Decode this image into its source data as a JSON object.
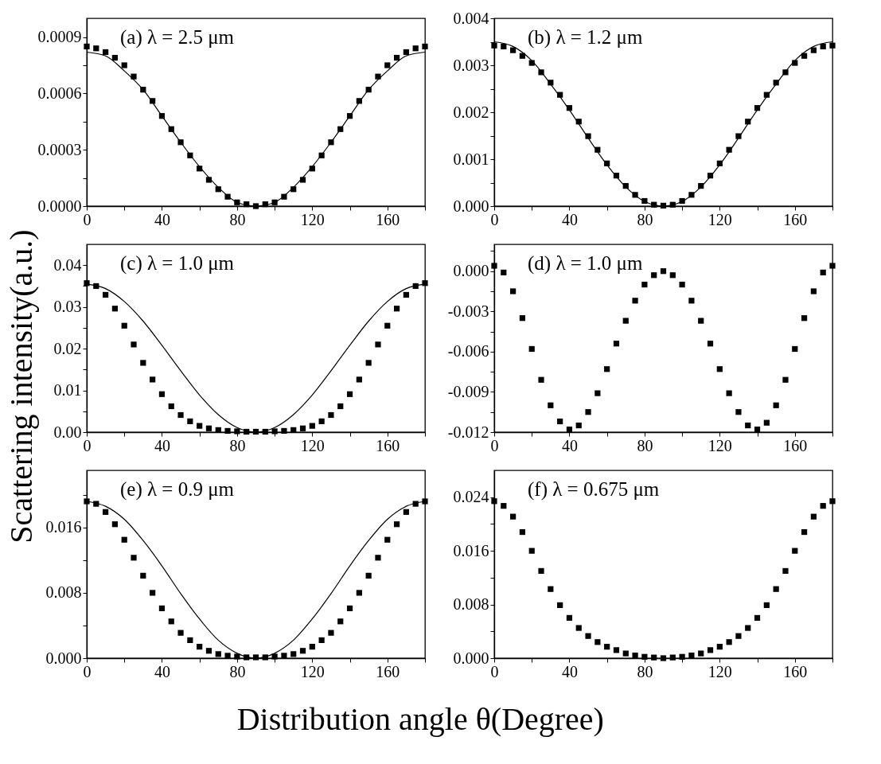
{
  "chart_data": [
    {
      "type": "scatter",
      "title": "(a) λ = 2.5 μm",
      "xlim": [
        0,
        180
      ],
      "xticks": [
        0,
        {
          "value": 20,
          "label": null
        },
        40,
        {
          "value": 60,
          "label": null
        },
        80,
        {
          "value": 100,
          "label": null
        },
        120,
        {
          "value": 140,
          "label": null
        },
        160,
        {
          "value": 180,
          "label": null
        }
      ],
      "ylim": [
        0,
        0.001
      ],
      "yticks": [
        {
          "value": 0,
          "label": "0.0000"
        },
        {
          "value": 0.00015,
          "label": null
        },
        {
          "value": 0.0003,
          "label": "0.0003"
        },
        {
          "value": 0.00045,
          "label": null
        },
        {
          "value": 0.0006,
          "label": "0.0006"
        },
        {
          "value": 0.00075,
          "label": null
        },
        {
          "value": 0.0009,
          "label": "0.0009"
        }
      ],
      "series": [
        {
          "marker": "square",
          "color": "#000000",
          "x": [
            0,
            5,
            10,
            15,
            20,
            25,
            30,
            35,
            40,
            45,
            50,
            55,
            60,
            65,
            70,
            75,
            80,
            85,
            90,
            95,
            100,
            105,
            110,
            115,
            120,
            125,
            130,
            135,
            140,
            145,
            150,
            155,
            160,
            165,
            170,
            175,
            180
          ],
          "values": [
            0.00085,
            0.00084,
            0.00082,
            0.00079,
            0.00075,
            0.00069,
            0.00062,
            0.00056,
            0.00048,
            0.00041,
            0.00034,
            0.00027,
            0.0002,
            0.00014,
            9e-05,
            5e-05,
            2e-05,
            1e-05,
            0,
            1e-05,
            2e-05,
            5e-05,
            9e-05,
            0.00014,
            0.0002,
            0.00027,
            0.00034,
            0.00041,
            0.00048,
            0.00056,
            0.00062,
            0.00069,
            0.00075,
            0.00079,
            0.00082,
            0.00084,
            0.00085
          ]
        },
        {
          "type": "line",
          "color": "#000000",
          "x": [
            0,
            10,
            20,
            30,
            40,
            50,
            60,
            70,
            80,
            90,
            100,
            110,
            120,
            130,
            140,
            150,
            160,
            170,
            180
          ],
          "values": [
            0.00082,
            0.0008,
            0.00072,
            0.00062,
            0.00048,
            0.00034,
            0.00021,
            0.0001,
            2e-05,
            0,
            2e-05,
            0.0001,
            0.00021,
            0.00034,
            0.00048,
            0.00062,
            0.00072,
            0.0008,
            0.00082
          ]
        }
      ]
    },
    {
      "type": "scatter",
      "title": "(b) λ = 1.2 μm",
      "xlim": [
        0,
        180
      ],
      "xticks": [
        0,
        {
          "value": 20,
          "label": null
        },
        40,
        {
          "value": 60,
          "label": null
        },
        80,
        {
          "value": 100,
          "label": null
        },
        120,
        {
          "value": 140,
          "label": null
        },
        160,
        {
          "value": 180,
          "label": null
        }
      ],
      "ylim": [
        0,
        0.004
      ],
      "yticks": [
        {
          "value": 0,
          "label": "0.000"
        },
        {
          "value": 0.0005,
          "label": null
        },
        0.001,
        {
          "value": 0.0015,
          "label": null
        },
        0.002,
        {
          "value": 0.0025,
          "label": null
        },
        0.003,
        {
          "value": 0.0035,
          "label": null
        },
        0.004
      ],
      "series": [
        {
          "marker": "square",
          "color": "#000000",
          "x": [
            0,
            5,
            10,
            15,
            20,
            25,
            30,
            35,
            40,
            45,
            50,
            55,
            60,
            65,
            70,
            75,
            80,
            85,
            90,
            95,
            100,
            105,
            110,
            115,
            120,
            125,
            130,
            135,
            140,
            145,
            150,
            155,
            160,
            165,
            170,
            175,
            180
          ],
          "values": [
            0.00342,
            0.0034,
            0.00332,
            0.0032,
            0.00305,
            0.00285,
            0.00263,
            0.00237,
            0.00209,
            0.0018,
            0.00149,
            0.0012,
            0.00091,
            0.00065,
            0.00043,
            0.00024,
            0.00011,
            3e-05,
            1e-05,
            3e-05,
            0.00011,
            0.00024,
            0.00043,
            0.00065,
            0.00091,
            0.0012,
            0.00149,
            0.0018,
            0.00209,
            0.00237,
            0.00263,
            0.00285,
            0.00305,
            0.0032,
            0.00332,
            0.0034,
            0.00342
          ]
        },
        {
          "type": "line",
          "color": "#000000",
          "x": [
            0,
            10,
            20,
            30,
            40,
            50,
            60,
            70,
            80,
            90,
            100,
            110,
            120,
            130,
            140,
            150,
            160,
            170,
            180
          ],
          "values": [
            0.0035,
            0.0034,
            0.0031,
            0.0026,
            0.00205,
            0.00145,
            0.00088,
            0.00041,
            0.0001,
            0,
            0.0001,
            0.00041,
            0.00088,
            0.00145,
            0.00205,
            0.0026,
            0.0031,
            0.0034,
            0.0035
          ]
        }
      ]
    },
    {
      "type": "scatter",
      "title": "(c) λ = 1.0 μm",
      "ylabel": "Scattering intensity(a.u.)",
      "xlim": [
        0,
        180
      ],
      "xticks": [
        0,
        {
          "value": 20,
          "label": null
        },
        40,
        {
          "value": 60,
          "label": null
        },
        80,
        {
          "value": 100,
          "label": null
        },
        120,
        {
          "value": 140,
          "label": null
        },
        160,
        {
          "value": 180,
          "label": null
        }
      ],
      "ylim": [
        0,
        0.045
      ],
      "yticks": [
        {
          "value": 0,
          "label": "0.00"
        },
        {
          "value": 0.005,
          "label": null
        },
        0.01,
        {
          "value": 0.015,
          "label": null
        },
        0.02,
        {
          "value": 0.025,
          "label": null
        },
        0.03,
        {
          "value": 0.035,
          "label": null
        },
        0.04
      ],
      "series": [
        {
          "marker": "square",
          "color": "#000000",
          "x": [
            0,
            5,
            10,
            15,
            20,
            25,
            30,
            35,
            40,
            45,
            50,
            55,
            60,
            65,
            70,
            75,
            80,
            85,
            90,
            95,
            100,
            105,
            110,
            115,
            120,
            125,
            130,
            135,
            140,
            145,
            150,
            155,
            160,
            165,
            170,
            175,
            180
          ],
          "values": [
            0.0357,
            0.035,
            0.0329,
            0.0296,
            0.0255,
            0.021,
            0.0166,
            0.0126,
            0.0091,
            0.0062,
            0.0041,
            0.0026,
            0.0015,
            0.0009,
            0.0005,
            0.0003,
            0.0002,
            0.0001,
            0.0001,
            0.0001,
            0.0002,
            0.0003,
            0.0005,
            0.0009,
            0.0015,
            0.0026,
            0.0041,
            0.0062,
            0.0091,
            0.0126,
            0.0166,
            0.021,
            0.0255,
            0.0296,
            0.0329,
            0.035,
            0.0357
          ]
        },
        {
          "type": "line",
          "color": "#000000",
          "x": [
            0,
            10,
            20,
            30,
            40,
            50,
            60,
            70,
            80,
            90,
            100,
            110,
            120,
            130,
            140,
            150,
            160,
            170,
            180
          ],
          "values": [
            0.0355,
            0.0344,
            0.0313,
            0.0266,
            0.0208,
            0.0147,
            0.0089,
            0.0042,
            0.0011,
            0,
            0.0011,
            0.0042,
            0.0089,
            0.0147,
            0.0208,
            0.0266,
            0.0313,
            0.0344,
            0.0355
          ]
        }
      ]
    },
    {
      "type": "scatter",
      "title": "(d) λ = 1.0 μm",
      "xlim": [
        0,
        180
      ],
      "xticks": [
        0,
        {
          "value": 20,
          "label": null
        },
        40,
        {
          "value": 60,
          "label": null
        },
        80,
        {
          "value": 100,
          "label": null
        },
        120,
        {
          "value": 140,
          "label": null
        },
        160,
        {
          "value": 180,
          "label": null
        }
      ],
      "ylim": [
        -0.012,
        0.002
      ],
      "yticks": [
        -0.012,
        {
          "value": -0.0105,
          "label": null
        },
        -0.009,
        {
          "value": -0.0075,
          "label": null
        },
        -0.006,
        {
          "value": -0.0045,
          "label": null
        },
        -0.003,
        {
          "value": -0.0015,
          "label": null
        },
        {
          "value": 0,
          "label": "0.000"
        },
        {
          "value": 0.0015,
          "label": null
        }
      ],
      "series": [
        {
          "marker": "square",
          "color": "#000000",
          "x": [
            0,
            5,
            10,
            15,
            20,
            25,
            30,
            35,
            40,
            45,
            50,
            55,
            60,
            65,
            70,
            75,
            80,
            85,
            90,
            95,
            100,
            105,
            110,
            115,
            120,
            125,
            130,
            135,
            140,
            145,
            150,
            155,
            160,
            165,
            170,
            175,
            180
          ],
          "values": [
            0.0004,
            -0.0001,
            -0.0015,
            -0.0035,
            -0.0058,
            -0.0081,
            -0.01,
            -0.0112,
            -0.0118,
            -0.0115,
            -0.0105,
            -0.0091,
            -0.0073,
            -0.0054,
            -0.0037,
            -0.0022,
            -0.001,
            -0.0003,
            0,
            -0.0003,
            -0.001,
            -0.0022,
            -0.0037,
            -0.0054,
            -0.0073,
            -0.0091,
            -0.0105,
            -0.0115,
            -0.0118,
            -0.0113,
            -0.01,
            -0.0081,
            -0.0058,
            -0.0035,
            -0.0015,
            -0.0001,
            0.0004
          ]
        }
      ]
    },
    {
      "type": "scatter",
      "title": "(e) λ = 0.9 μm",
      "xlabel": "Distribution angle θ(Degree)",
      "xlim": [
        0,
        180
      ],
      "xticks": [
        0,
        {
          "value": 20,
          "label": null
        },
        40,
        {
          "value": 60,
          "label": null
        },
        80,
        {
          "value": 100,
          "label": null
        },
        120,
        {
          "value": 140,
          "label": null
        },
        160,
        {
          "value": 180,
          "label": null
        }
      ],
      "ylim": [
        0,
        0.023
      ],
      "yticks": [
        {
          "value": 0,
          "label": "0.000"
        },
        {
          "value": 0.004,
          "label": null
        },
        {
          "value": 0.008,
          "label": "0.008"
        },
        {
          "value": 0.012,
          "label": null
        },
        {
          "value": 0.016,
          "label": "0.016"
        },
        {
          "value": 0.02,
          "label": null
        }
      ],
      "series": [
        {
          "marker": "square",
          "color": "#000000",
          "x": [
            0,
            5,
            10,
            15,
            20,
            25,
            30,
            35,
            40,
            45,
            50,
            55,
            60,
            65,
            70,
            75,
            80,
            85,
            90,
            95,
            100,
            105,
            110,
            115,
            120,
            125,
            130,
            135,
            140,
            145,
            150,
            155,
            160,
            165,
            170,
            175,
            180
          ],
          "values": [
            0.0192,
            0.0189,
            0.0179,
            0.0164,
            0.0145,
            0.0123,
            0.0101,
            0.008,
            0.0061,
            0.0045,
            0.0031,
            0.0022,
            0.0014,
            0.0009,
            0.0005,
            0.0003,
            0.0002,
            0.0001,
            0.0001,
            0.0001,
            0.0002,
            0.0003,
            0.0005,
            0.0009,
            0.0014,
            0.0022,
            0.0031,
            0.0045,
            0.0061,
            0.008,
            0.0101,
            0.0123,
            0.0145,
            0.0164,
            0.0179,
            0.0189,
            0.0192
          ]
        },
        {
          "type": "line",
          "color": "#000000",
          "x": [
            0,
            10,
            20,
            30,
            40,
            50,
            60,
            70,
            80,
            90,
            100,
            110,
            120,
            130,
            140,
            150,
            160,
            170,
            180
          ],
          "values": [
            0.0192,
            0.0186,
            0.017,
            0.0144,
            0.0113,
            0.0079,
            0.0048,
            0.0022,
            0.0006,
            0,
            0.0006,
            0.0022,
            0.0048,
            0.0079,
            0.0113,
            0.0144,
            0.017,
            0.0186,
            0.0192
          ]
        }
      ]
    },
    {
      "type": "scatter",
      "title": "(f) λ = 0.675 μm",
      "xlim": [
        0,
        180
      ],
      "xticks": [
        0,
        {
          "value": 20,
          "label": null
        },
        40,
        {
          "value": 60,
          "label": null
        },
        80,
        {
          "value": 100,
          "label": null
        },
        120,
        {
          "value": 140,
          "label": null
        },
        160,
        {
          "value": 180,
          "label": null
        }
      ],
      "ylim": [
        0,
        0.028
      ],
      "yticks": [
        {
          "value": 0,
          "label": "0.000"
        },
        {
          "value": 0.004,
          "label": null
        },
        {
          "value": 0.008,
          "label": "0.008"
        },
        {
          "value": 0.012,
          "label": null
        },
        {
          "value": 0.016,
          "label": "0.016"
        },
        {
          "value": 0.02,
          "label": null
        },
        {
          "value": 0.024,
          "label": "0.024"
        }
      ],
      "series": [
        {
          "marker": "square",
          "color": "#000000",
          "x": [
            0,
            5,
            10,
            15,
            20,
            25,
            30,
            35,
            40,
            45,
            50,
            55,
            60,
            65,
            70,
            75,
            80,
            85,
            90,
            95,
            100,
            105,
            110,
            115,
            120,
            125,
            130,
            135,
            140,
            145,
            150,
            155,
            160,
            165,
            170,
            175,
            180
          ],
          "values": [
            0.0234,
            0.0227,
            0.0211,
            0.0188,
            0.016,
            0.013,
            0.0103,
            0.0079,
            0.006,
            0.0045,
            0.0033,
            0.0024,
            0.0017,
            0.0012,
            0.0007,
            0.0004,
            0.0002,
            0.0001,
            0,
            0.0001,
            0.0002,
            0.0004,
            0.0007,
            0.0012,
            0.0017,
            0.0024,
            0.0033,
            0.0045,
            0.006,
            0.0079,
            0.0103,
            0.013,
            0.016,
            0.0188,
            0.0211,
            0.0227,
            0.0234
          ]
        }
      ]
    }
  ]
}
